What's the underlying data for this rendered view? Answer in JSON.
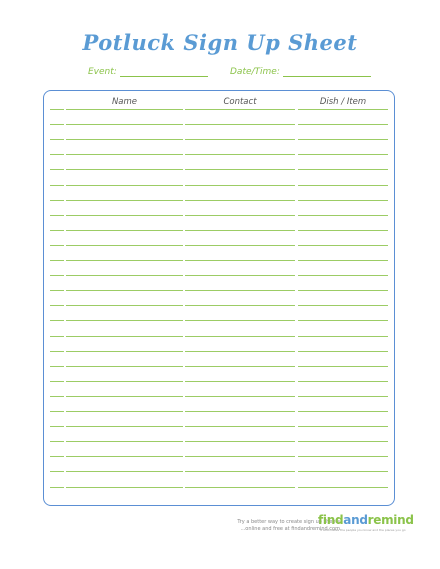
{
  "title": "Potluck Sign Up Sheet",
  "fields": {
    "event_label": "Event:",
    "datetime_label": "Date/Time:"
  },
  "table": {
    "columns": [
      "Name",
      "Contact",
      "Dish / Item"
    ],
    "row_count": 26
  },
  "footer": {
    "line1": "Try a better way to create sign up sheets",
    "line2": "...online and free at findandremind.com",
    "logo_find": "find",
    "logo_and": "and",
    "logo_remind": "remind",
    "tagline": "it automates the people you know and the places you go"
  },
  "colors": {
    "title": "#5a9bd4",
    "accent_green": "#8bc34a",
    "border_blue": "#5b8fd4"
  }
}
